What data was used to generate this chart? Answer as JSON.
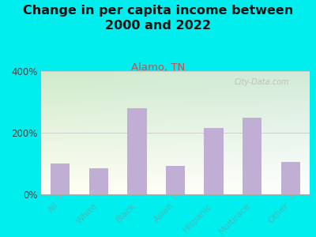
{
  "title": "Change in per capita income between\n2000 and 2022",
  "subtitle": "Alamo, TN",
  "categories": [
    "All",
    "White",
    "Black",
    "Asian",
    "Hispanic",
    "Multirace",
    "Other"
  ],
  "values": [
    100,
    85,
    280,
    93,
    215,
    248,
    105
  ],
  "bar_color": "#c0aed4",
  "background_outer": "#00eeee",
  "title_fontsize": 11.5,
  "title_color": "#111111",
  "subtitle_fontsize": 9.5,
  "subtitle_color": "#bb5555",
  "ytick_color": "#444444",
  "xtick_color": "#44bbbb",
  "ylim": [
    0,
    400
  ],
  "yticks": [
    0,
    200,
    400
  ],
  "watermark": "City-Data.com",
  "watermark_color": "#bbbbbb",
  "plot_bg_colors": [
    "#d4e8c0",
    "#f0f0f8"
  ],
  "spine_color": "#aaaaaa"
}
